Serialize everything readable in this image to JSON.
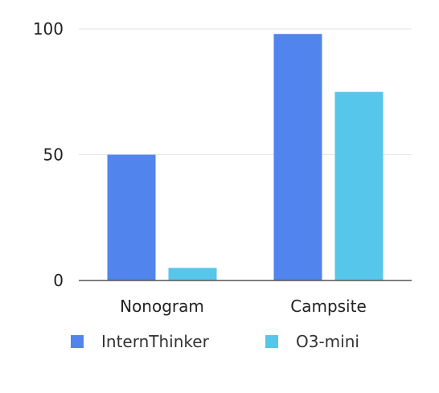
{
  "chart_data": {
    "type": "bar",
    "title": "",
    "xlabel": "",
    "ylabel": "",
    "categories": [
      "Nonogram",
      "Campsite"
    ],
    "series": [
      {
        "name": "InternThinker",
        "values": [
          50,
          98
        ],
        "color": "#5184ec"
      },
      {
        "name": "O3-mini",
        "values": [
          5,
          75
        ],
        "color": "#56c6ea"
      }
    ],
    "ylim": [
      0,
      100
    ],
    "yticks": [
      "0",
      "50",
      "100"
    ],
    "grid": true,
    "legend": "bottom"
  }
}
